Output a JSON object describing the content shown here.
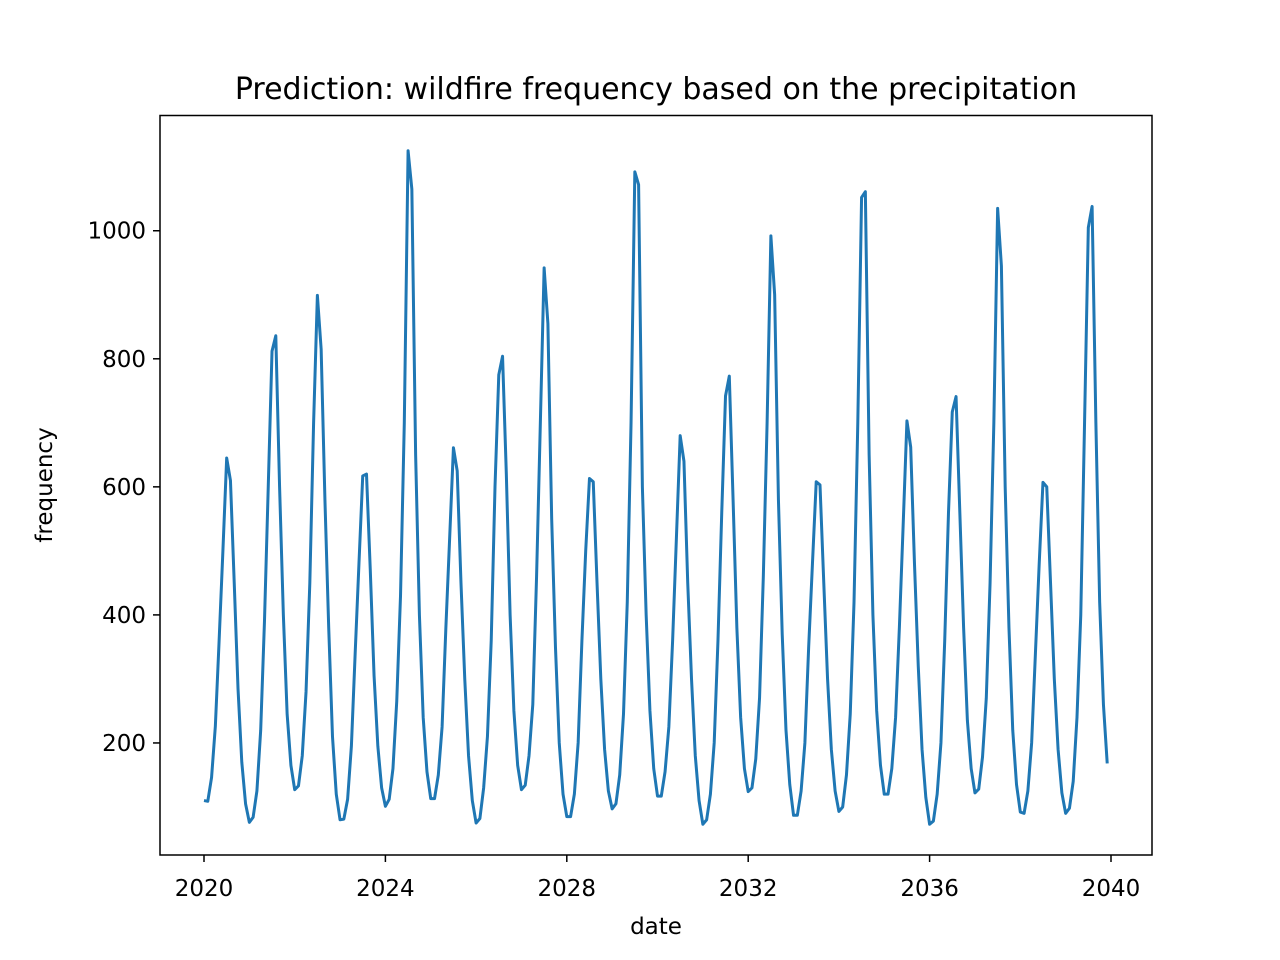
{
  "chart_data": {
    "type": "line",
    "title": "Prediction: wildfire frequency based on the precipitation",
    "xlabel": "date",
    "ylabel": "frequency",
    "xlim": [
      "2020-01",
      "2040-01"
    ],
    "ylim": [
      25,
      1180
    ],
    "x_ticks": [
      "2020",
      "2024",
      "2028",
      "2032",
      "2036",
      "2040"
    ],
    "y_ticks": [
      "200",
      "400",
      "600",
      "800",
      "1000"
    ],
    "grid": false,
    "legend": "none",
    "line_color": "#1f77b4",
    "series": [
      {
        "x_start": "2020-01",
        "x_step": "month",
        "values": [
          110,
          109,
          146,
          226,
          360,
          500,
          645,
          610,
          450,
          285,
          170,
          105,
          76,
          84,
          125,
          220,
          390,
          600,
          812,
          836,
          600,
          400,
          245,
          165,
          127,
          133,
          180,
          280,
          450,
          700,
          899,
          815,
          580,
          380,
          210,
          120,
          80,
          81,
          112,
          195,
          340,
          480,
          617,
          620,
          470,
          305,
          195,
          130,
          101,
          112,
          160,
          265,
          430,
          700,
          1125,
          1065,
          650,
          400,
          240,
          155,
          113,
          113,
          150,
          225,
          380,
          520,
          661,
          625,
          450,
          300,
          180,
          110,
          75,
          82,
          130,
          210,
          360,
          600,
          775,
          804,
          620,
          400,
          250,
          165,
          127,
          134,
          180,
          260,
          460,
          700,
          942,
          855,
          550,
          350,
          200,
          120,
          85,
          85,
          120,
          200,
          360,
          500,
          613,
          608,
          450,
          300,
          190,
          125,
          97,
          105,
          150,
          245,
          420,
          700,
          1092,
          1072,
          600,
          400,
          250,
          160,
          117,
          117,
          155,
          225,
          360,
          520,
          680,
          640,
          450,
          300,
          180,
          110,
          73,
          80,
          120,
          200,
          360,
          560,
          742,
          773,
          580,
          380,
          240,
          160,
          124,
          130,
          175,
          270,
          460,
          700,
          992,
          900,
          580,
          370,
          220,
          135,
          87,
          87,
          125,
          200,
          350,
          480,
          608,
          603,
          450,
          300,
          190,
          125,
          93,
          100,
          150,
          245,
          420,
          700,
          1052,
          1061,
          650,
          400,
          250,
          165,
          120,
          120,
          160,
          240,
          380,
          540,
          703,
          662,
          480,
          320,
          190,
          115,
          73,
          78,
          120,
          200,
          360,
          560,
          717,
          741,
          560,
          380,
          235,
          160,
          122,
          128,
          178,
          270,
          450,
          700,
          1035,
          945,
          600,
          380,
          220,
          135,
          92,
          90,
          125,
          200,
          340,
          480,
          607,
          600,
          450,
          300,
          190,
          122,
          90,
          98,
          140,
          240,
          400,
          700,
          1005,
          1038,
          700,
          420,
          260,
          168
        ]
      }
    ]
  }
}
